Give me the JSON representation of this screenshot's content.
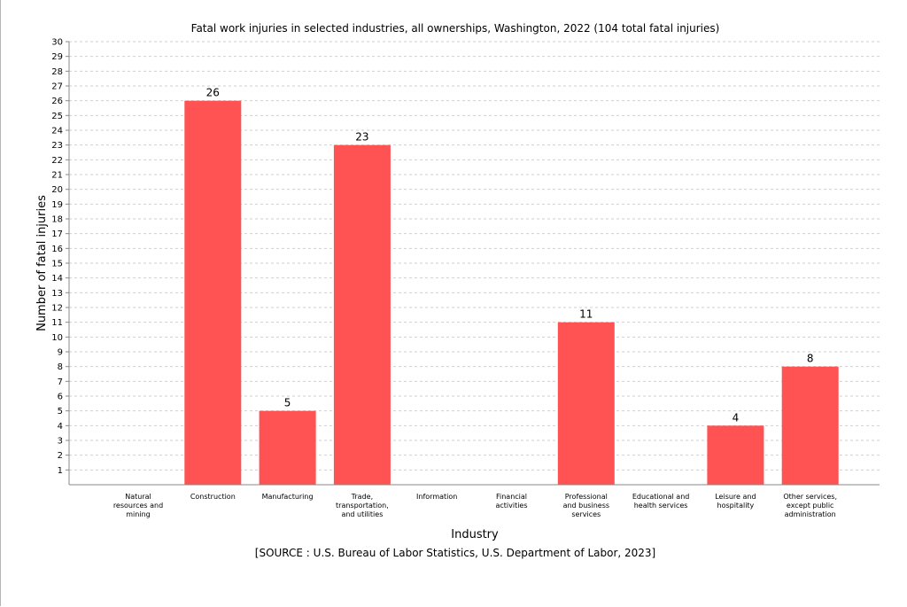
{
  "chart_data": {
    "type": "bar",
    "title": "Fatal work injuries in selected industries, all ownerships, Washington, 2022 (104 total fatal injuries)",
    "xlabel": "Industry",
    "ylabel": "Number of fatal injuries",
    "source": "[SOURCE : U.S. Bureau of Labor Statistics, U.S. Department of Labor, 2023]",
    "ylim": [
      0,
      30
    ],
    "ytick_step": 1,
    "grid": true,
    "categories": [
      [
        "Natural",
        "resources and",
        "mining"
      ],
      [
        "Construction"
      ],
      [
        "Manufacturing"
      ],
      [
        "Trade,",
        "transportation,",
        "and utilities"
      ],
      [
        "Information"
      ],
      [
        "Financial",
        "activities"
      ],
      [
        "Professional",
        "and business",
        "services"
      ],
      [
        "Educational and",
        "health services"
      ],
      [
        "Leisure and",
        "hospitality"
      ],
      [
        "Other services,",
        "except public",
        "administration"
      ]
    ],
    "values": [
      null,
      26,
      5,
      23,
      null,
      null,
      11,
      null,
      4,
      8
    ],
    "bar_color": "#ff5252"
  }
}
